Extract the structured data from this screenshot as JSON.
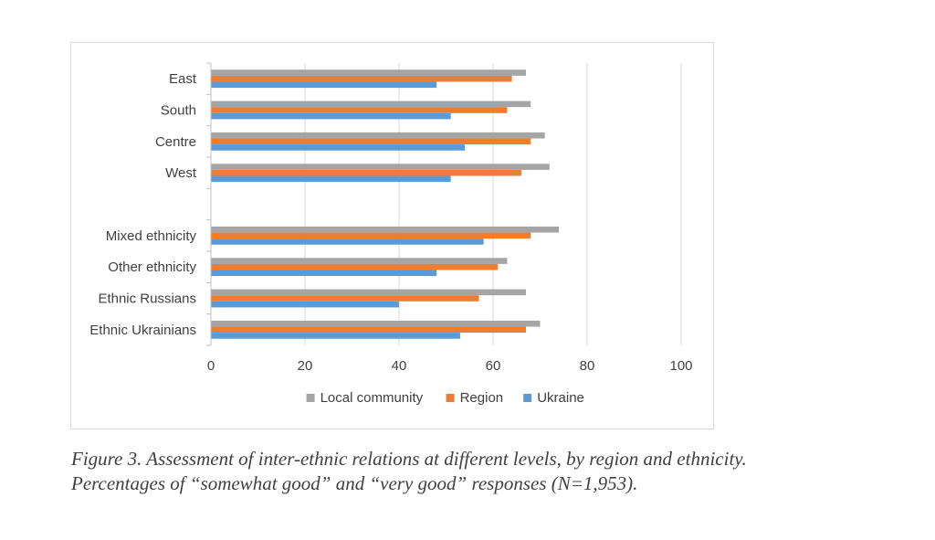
{
  "caption": {
    "line1": "Figure 3. Assessment of inter-ethnic relations at different levels, by region and ethnicity.",
    "line2": "Percentages of “somewhat good” and “very good” responses (N=1,953)."
  },
  "chart_data": {
    "type": "bar",
    "orientation": "horizontal",
    "categories": [
      "East",
      "South",
      "Centre",
      "West",
      "",
      "Mixed ethnicity",
      "Other ethnicity",
      "Ethnic Russians",
      "Ethnic Ukrainians"
    ],
    "series": [
      {
        "name": "Local community",
        "color": "#a5a5a5",
        "values": [
          67,
          68,
          71,
          72,
          null,
          74,
          63,
          67,
          70
        ]
      },
      {
        "name": "Region",
        "color": "#ed7d31",
        "values": [
          64,
          63,
          68,
          66,
          null,
          68,
          61,
          57,
          67
        ]
      },
      {
        "name": "Ukraine",
        "color": "#5b9bd5",
        "values": [
          48,
          51,
          54,
          51,
          null,
          58,
          48,
          40,
          53
        ]
      }
    ],
    "xlim": [
      0,
      100
    ],
    "xticks": [
      0,
      20,
      40,
      60,
      80,
      100
    ],
    "grid": true,
    "legend_position": "bottom",
    "title": "",
    "xlabel": "",
    "ylabel": ""
  }
}
